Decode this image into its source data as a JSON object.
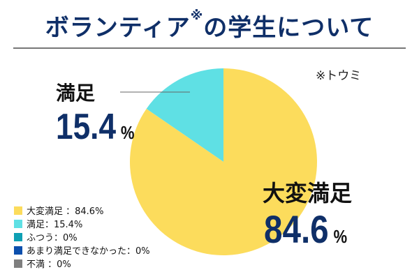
{
  "title": "ボランティア",
  "title_mark": "※",
  "title_rest": "の学生について",
  "note": "※トウミ",
  "chart_data": {
    "type": "pie",
    "start": "top",
    "slices": [
      {
        "label": "大変満足",
        "value": 84.6,
        "color": "#fcdc5c"
      },
      {
        "label": "満足",
        "value": 15.4,
        "color": "#5fe0e4"
      },
      {
        "label": "ふつう",
        "value": 0,
        "color": "#0fa0b4"
      },
      {
        "label": "あまり満足できなかった",
        "value": 0,
        "color": "#0c4fad"
      },
      {
        "label": "不満",
        "value": 0,
        "color": "#7f7f7f"
      }
    ]
  },
  "callouts": {
    "satisfied_label": "満足",
    "satisfied_value": "15.4",
    "very_label": "大変満足",
    "very_value": "84.6",
    "unit": "%"
  },
  "legend": [
    "大変満足 ：84.6%",
    "満足：15.4%",
    "ふつう：0%",
    "あまり満足できなかった：0%",
    "不満 ：0%"
  ]
}
